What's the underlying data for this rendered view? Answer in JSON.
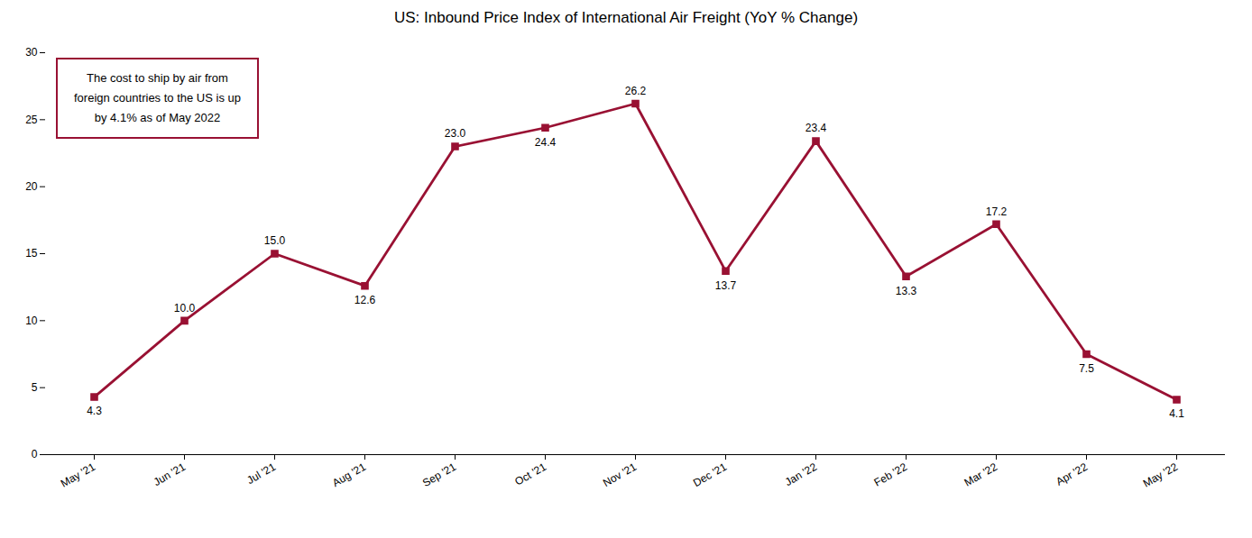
{
  "chart_data": {
    "type": "line",
    "title": "US: Inbound Price Index of International Air Freight (YoY % Change)",
    "categories": [
      "May '21",
      "Jun '21",
      "Jul '21",
      "Aug '21",
      "Sep '21",
      "Oct '21",
      "Nov '21",
      "Dec '21",
      "Jan '22",
      "Feb '22",
      "Mar '22",
      "Apr '22",
      "May '22"
    ],
    "values": [
      4.3,
      10.0,
      15.0,
      12.6,
      23.0,
      24.4,
      26.2,
      13.7,
      23.4,
      13.3,
      17.2,
      7.5,
      4.1
    ],
    "value_labels": [
      "4.3",
      "10.0",
      "15.0",
      "12.6",
      "23.0",
      "24.4",
      "26.2",
      "13.7",
      "23.4",
      "13.3",
      "17.2",
      "7.5",
      "4.1"
    ],
    "data_labels": true,
    "color": "#991133",
    "marker": "square",
    "ylim": [
      0,
      30
    ],
    "yticks": [
      0,
      5,
      10,
      15,
      20,
      25,
      30
    ],
    "grid": false,
    "annotation": "The cost to ship by air from\nforeign countries to the US is up\nby 4.1% as of May 2022"
  }
}
